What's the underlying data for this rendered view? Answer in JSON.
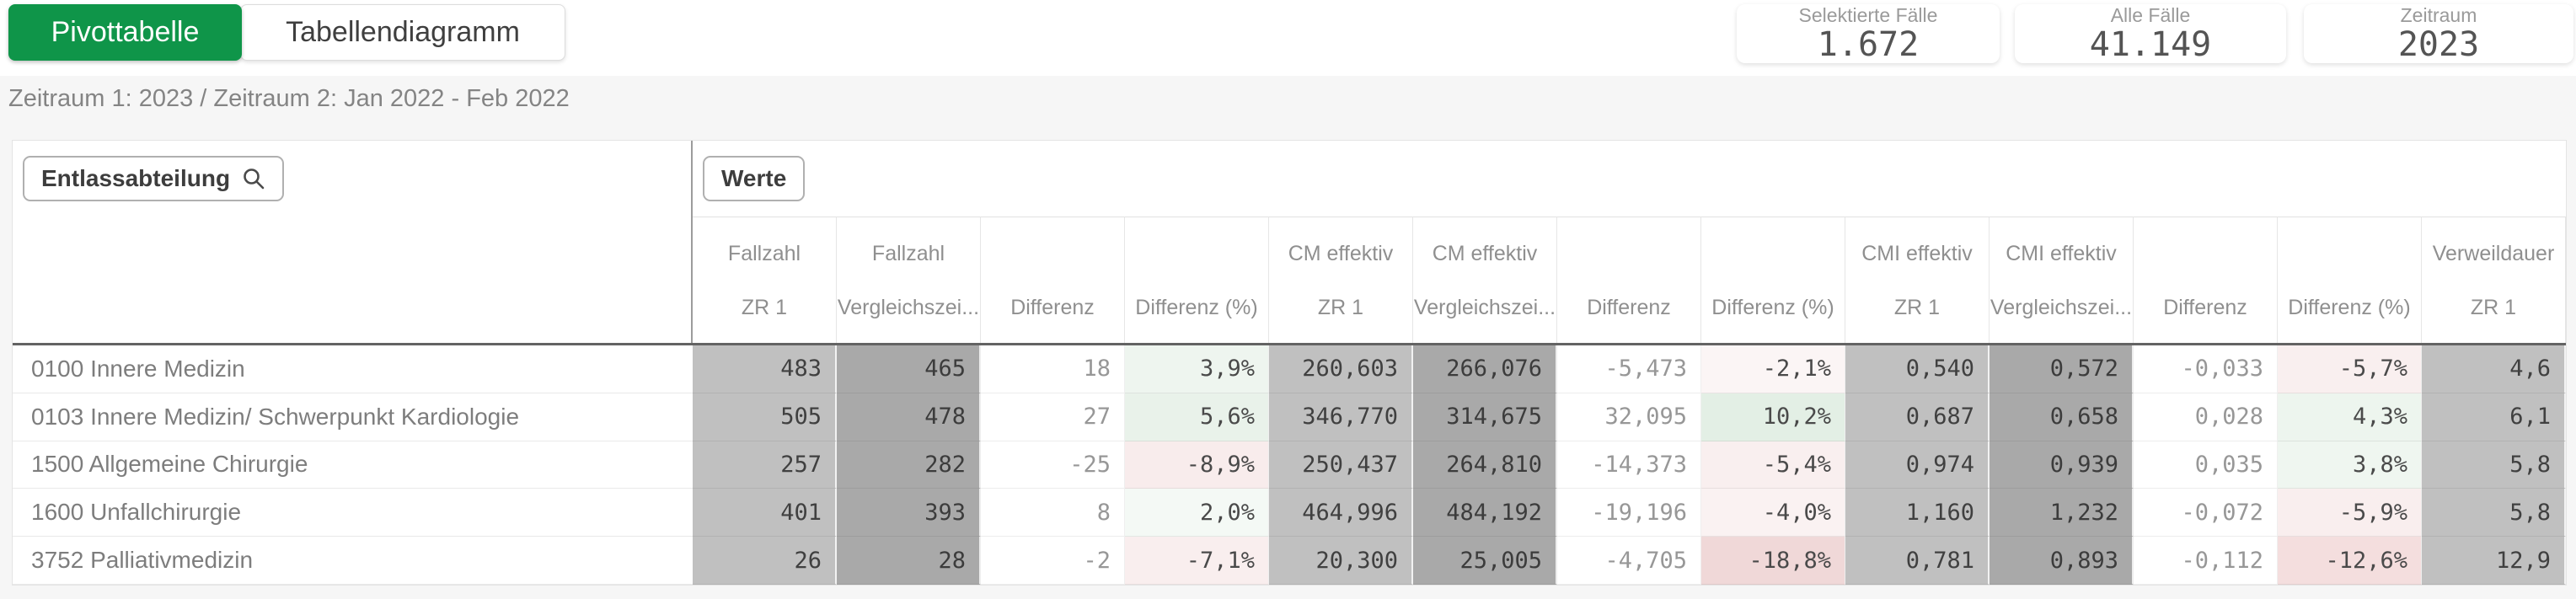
{
  "tabs": [
    {
      "label": "Pivottabelle",
      "active": true
    },
    {
      "label": "Tabellendiagramm",
      "active": false
    }
  ],
  "kpis": [
    {
      "label": "Selektierte Fälle",
      "value": "1.672"
    },
    {
      "label": "Alle Fälle",
      "value": "41.149"
    },
    {
      "label": "Zeitraum",
      "value": "2023"
    }
  ],
  "subtitle": "Zeitraum 1: 2023 / Zeitraum 2: Jan 2022 - Feb 2022",
  "colors": {
    "accent_green": "#0f9549",
    "cell_gray_light": "#c0c0c0",
    "cell_gray_dark": "#a9a9a9",
    "positive_tint_strong": "#e3efe5",
    "negative_tint_strong": "#f0d8d8"
  },
  "pivot": {
    "dimension_label": "Entlassabteilung",
    "search_icon": "magnifier",
    "values_label": "Werte",
    "columns": [
      {
        "group": "Fallzahl",
        "sub": "ZR 1",
        "style": "glight"
      },
      {
        "group": "Fallzahl",
        "sub": "Vergleichszei...",
        "style": "gdark"
      },
      {
        "group": "",
        "sub": "Differenz",
        "style": "white"
      },
      {
        "group": "",
        "sub": "Differenz (%)",
        "style": "pct"
      },
      {
        "group": "CM effektiv",
        "sub": "ZR 1",
        "style": "glight"
      },
      {
        "group": "CM effektiv",
        "sub": "Vergleichszei...",
        "style": "gdark"
      },
      {
        "group": "",
        "sub": "Differenz",
        "style": "white"
      },
      {
        "group": "",
        "sub": "Differenz (%)",
        "style": "pct"
      },
      {
        "group": "CMI effektiv",
        "sub": "ZR 1",
        "style": "glight"
      },
      {
        "group": "CMI effektiv",
        "sub": "Vergleichszei...",
        "style": "gdark"
      },
      {
        "group": "",
        "sub": "Differenz",
        "style": "white"
      },
      {
        "group": "",
        "sub": "Differenz (%)",
        "style": "pct"
      },
      {
        "group": "Verweildauer",
        "sub": "ZR 1",
        "style": "glight"
      }
    ],
    "rows": [
      {
        "label": "0100 Innere Medizin",
        "cells": [
          {
            "v": "483"
          },
          {
            "v": "465"
          },
          {
            "v": "18"
          },
          {
            "v": "3,9%",
            "bg": "#eef5ef"
          },
          {
            "v": "260,603"
          },
          {
            "v": "266,076"
          },
          {
            "v": "-5,473"
          },
          {
            "v": "-2,1%",
            "bg": "#fbf5f5"
          },
          {
            "v": "0,540"
          },
          {
            "v": "0,572"
          },
          {
            "v": "-0,033"
          },
          {
            "v": "-5,7%",
            "bg": "#f9efef"
          },
          {
            "v": "4,6"
          }
        ]
      },
      {
        "label": "0103 Innere Medizin/ Schwerpunkt Kardiologie",
        "cells": [
          {
            "v": "505"
          },
          {
            "v": "478"
          },
          {
            "v": "27"
          },
          {
            "v": "5,6%",
            "bg": "#e9f2ea"
          },
          {
            "v": "346,770"
          },
          {
            "v": "314,675"
          },
          {
            "v": "32,095"
          },
          {
            "v": "10,2%",
            "bg": "#e3efe5"
          },
          {
            "v": "0,687"
          },
          {
            "v": "0,658"
          },
          {
            "v": "0,028"
          },
          {
            "v": "4,3%",
            "bg": "#edf5ee"
          },
          {
            "v": "6,1"
          }
        ]
      },
      {
        "label": "1500 Allgemeine Chirurgie",
        "cells": [
          {
            "v": "257"
          },
          {
            "v": "282"
          },
          {
            "v": "-25"
          },
          {
            "v": "-8,9%",
            "bg": "#f8ecec"
          },
          {
            "v": "250,437"
          },
          {
            "v": "264,810"
          },
          {
            "v": "-14,373"
          },
          {
            "v": "-5,4%",
            "bg": "#f9efef"
          },
          {
            "v": "0,974"
          },
          {
            "v": "0,939"
          },
          {
            "v": "0,035"
          },
          {
            "v": "3,8%",
            "bg": "#eff6f0"
          },
          {
            "v": "5,8"
          }
        ]
      },
      {
        "label": "1600 Unfallchirurgie",
        "cells": [
          {
            "v": "401"
          },
          {
            "v": "393"
          },
          {
            "v": "8"
          },
          {
            "v": "2,0%",
            "bg": "#f4f9f5"
          },
          {
            "v": "464,996"
          },
          {
            "v": "484,192"
          },
          {
            "v": "-19,196"
          },
          {
            "v": "-4,0%",
            "bg": "#faf2f2"
          },
          {
            "v": "1,160"
          },
          {
            "v": "1,232"
          },
          {
            "v": "-0,072"
          },
          {
            "v": "-5,9%",
            "bg": "#f9eeee"
          },
          {
            "v": "5,8"
          }
        ]
      },
      {
        "label": "3752 Palliativmedizin",
        "cells": [
          {
            "v": "26"
          },
          {
            "v": "28"
          },
          {
            "v": "-2"
          },
          {
            "v": "-7,1%",
            "bg": "#f9eeee"
          },
          {
            "v": "20,300"
          },
          {
            "v": "25,005"
          },
          {
            "v": "-4,705"
          },
          {
            "v": "-18,8%",
            "bg": "#f0d8d8"
          },
          {
            "v": "0,781"
          },
          {
            "v": "0,893"
          },
          {
            "v": "-0,112"
          },
          {
            "v": "-12,6%",
            "bg": "#f4dede"
          },
          {
            "v": "12,9"
          }
        ]
      }
    ]
  }
}
